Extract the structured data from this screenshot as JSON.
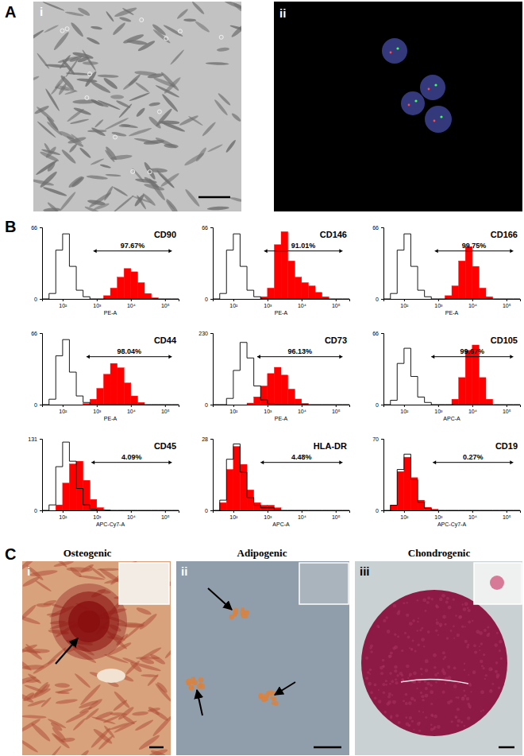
{
  "panel_labels": [
    "A",
    "B",
    "C"
  ],
  "panel_a": {
    "image_labels": [
      "i",
      "ii"
    ]
  },
  "panel_c": {
    "images": [
      {
        "title": "Osteogenic",
        "label": "i"
      },
      {
        "title": "Adipogenic",
        "label": "ii"
      },
      {
        "title": "Chondrogenic",
        "label": "iii"
      }
    ]
  },
  "chart_data": [
    {
      "type": "histogram",
      "title": "CD90",
      "x_label": "PE-A",
      "log": "x",
      "bins": [
        25,
        40,
        63,
        100,
        158,
        251,
        398,
        631,
        1000,
        1585,
        2512,
        3981,
        6310,
        10000,
        15849,
        25119,
        39811,
        63096,
        100000,
        158489,
        251189
      ],
      "xlim": [
        25,
        251189
      ],
      "ylim": [
        0,
        66
      ],
      "xticks": [
        {
          "value": 100,
          "label": "10²"
        },
        {
          "value": 1000,
          "label": "10³"
        },
        {
          "value": 10000,
          "label": "10⁴"
        },
        {
          "value": 100000,
          "label": "10⁵"
        }
      ],
      "yticks": [
        0,
        66
      ],
      "series": [
        {
          "type": "area",
          "color": "#ff0000",
          "values": [
            0,
            0,
            0,
            0,
            0,
            0,
            0,
            0,
            0,
            3,
            10,
            20,
            28,
            25,
            15,
            5,
            1,
            0,
            0,
            0
          ]
        },
        {
          "type": "line",
          "color": "#000000",
          "values": [
            0,
            5,
            45,
            60,
            30,
            8,
            2,
            0,
            0,
            0,
            0,
            0,
            0,
            0,
            0,
            0,
            0,
            0,
            0,
            0
          ]
        }
      ],
      "annotations": [
        {
          "text": "97.67%",
          "range": [
            800,
            158489
          ]
        }
      ]
    },
    {
      "type": "histogram",
      "title": "CD146",
      "x_label": "PE-A",
      "log": "x",
      "bins": [
        25,
        40,
        63,
        100,
        158,
        251,
        398,
        631,
        1000,
        1585,
        2512,
        3981,
        6310,
        10000,
        15849,
        25119,
        39811,
        63096,
        100000,
        158489,
        251189
      ],
      "xlim": [
        25,
        251189
      ],
      "ylim": [
        0,
        66
      ],
      "xticks": [
        {
          "value": 100,
          "label": "10²"
        },
        {
          "value": 1000,
          "label": "10³"
        },
        {
          "value": 10000,
          "label": "10⁴"
        },
        {
          "value": 100000,
          "label": "10⁵"
        }
      ],
      "yticks": [
        0,
        66
      ],
      "series": [
        {
          "type": "area",
          "color": "#ff0000",
          "values": [
            0,
            0,
            0,
            0,
            0,
            0,
            0,
            2,
            10,
            50,
            62,
            35,
            20,
            15,
            12,
            6,
            2,
            0,
            0,
            0
          ]
        },
        {
          "type": "line",
          "color": "#000000",
          "values": [
            0,
            5,
            45,
            60,
            30,
            8,
            2,
            0,
            0,
            0,
            0,
            0,
            0,
            0,
            0,
            0,
            0,
            0,
            0,
            0
          ]
        }
      ],
      "annotations": [
        {
          "text": "91.01%",
          "range": [
            800,
            158489
          ]
        }
      ]
    },
    {
      "type": "histogram",
      "title": "CD166",
      "x_label": "PE-A",
      "log": "x",
      "bins": [
        25,
        40,
        63,
        100,
        158,
        251,
        398,
        631,
        1000,
        1585,
        2512,
        3981,
        6310,
        10000,
        15849,
        25119,
        39811,
        63096,
        100000,
        158489,
        251189
      ],
      "xlim": [
        25,
        251189
      ],
      "ylim": [
        0,
        66
      ],
      "xticks": [
        {
          "value": 100,
          "label": "10²"
        },
        {
          "value": 1000,
          "label": "10³"
        },
        {
          "value": 10000,
          "label": "10⁴"
        },
        {
          "value": 100000,
          "label": "10⁵"
        }
      ],
      "yticks": [
        0,
        66
      ],
      "series": [
        {
          "type": "area",
          "color": "#ff0000",
          "values": [
            0,
            0,
            0,
            0,
            0,
            0,
            0,
            0,
            0,
            3,
            12,
            35,
            48,
            30,
            10,
            2,
            0,
            0,
            0,
            0
          ]
        },
        {
          "type": "line",
          "color": "#000000",
          "values": [
            0,
            5,
            45,
            60,
            30,
            8,
            2,
            0,
            0,
            0,
            0,
            0,
            0,
            0,
            0,
            0,
            0,
            0,
            0,
            0
          ]
        }
      ],
      "annotations": [
        {
          "text": "99.75%",
          "range": [
            800,
            158489
          ]
        }
      ]
    },
    {
      "type": "histogram",
      "title": "CD44",
      "x_label": "PE-A",
      "log": "x",
      "bins": [
        25,
        40,
        63,
        100,
        158,
        251,
        398,
        631,
        1000,
        1585,
        2512,
        3981,
        6310,
        10000,
        15849,
        25119,
        39811,
        63096,
        100000,
        158489,
        251189
      ],
      "xlim": [
        25,
        251189
      ],
      "ylim": [
        0,
        66
      ],
      "xticks": [
        {
          "value": 100,
          "label": "10²"
        },
        {
          "value": 1000,
          "label": "10³"
        },
        {
          "value": 10000,
          "label": "10⁴"
        },
        {
          "value": 100000,
          "label": "10⁵"
        }
      ],
      "yticks": [
        0,
        66
      ],
      "series": [
        {
          "type": "area",
          "color": "#ff0000",
          "values": [
            0,
            0,
            0,
            0,
            0,
            0,
            1,
            5,
            15,
            28,
            38,
            34,
            20,
            8,
            2,
            0,
            0,
            0,
            0,
            0
          ]
        },
        {
          "type": "line",
          "color": "#000000",
          "values": [
            0,
            5,
            45,
            60,
            30,
            8,
            2,
            0,
            0,
            0,
            0,
            0,
            0,
            0,
            0,
            0,
            0,
            0,
            0,
            0
          ]
        }
      ],
      "annotations": [
        {
          "text": "98.04%",
          "range": [
            500,
            158489
          ]
        }
      ]
    },
    {
      "type": "histogram",
      "title": "CD73",
      "x_label": "PE-A",
      "log": "x",
      "bins": [
        25,
        40,
        63,
        100,
        158,
        251,
        398,
        631,
        1000,
        1585,
        2512,
        3981,
        6310,
        10000,
        15849,
        25119,
        39811,
        63096,
        100000,
        158489,
        251189
      ],
      "xlim": [
        25,
        251189
      ],
      "ylim": [
        0,
        230
      ],
      "xticks": [
        {
          "value": 100,
          "label": "10²"
        },
        {
          "value": 1000,
          "label": "10³"
        },
        {
          "value": 10000,
          "label": "10⁴"
        },
        {
          "value": 100000,
          "label": "10⁵"
        }
      ],
      "yticks": [
        0,
        230
      ],
      "series": [
        {
          "type": "area",
          "color": "#ff0000",
          "values": [
            0,
            0,
            0,
            0,
            0,
            5,
            25,
            60,
            100,
            120,
            95,
            50,
            18,
            4,
            0,
            0,
            0,
            0,
            0,
            0
          ]
        },
        {
          "type": "line",
          "color": "#000000",
          "values": [
            0,
            0,
            20,
            110,
            200,
            150,
            60,
            15,
            3,
            0,
            0,
            0,
            0,
            0,
            0,
            0,
            0,
            0,
            0,
            0
          ]
        }
      ],
      "annotations": [
        {
          "text": "96.13%",
          "range": [
            500,
            158489
          ]
        }
      ]
    },
    {
      "type": "histogram",
      "title": "CD105",
      "x_label": "APC-A",
      "log": "x",
      "bins": [
        25,
        40,
        63,
        100,
        158,
        251,
        398,
        631,
        1000,
        1585,
        2512,
        3981,
        6310,
        10000,
        15849,
        25119,
        39811,
        63096,
        100000,
        158489,
        251189
      ],
      "xlim": [
        25,
        251189
      ],
      "ylim": [
        0,
        66
      ],
      "xticks": [
        {
          "value": 100,
          "label": "10²"
        },
        {
          "value": 1000,
          "label": "10³"
        },
        {
          "value": 10000,
          "label": "10⁴"
        },
        {
          "value": 100000,
          "label": "10⁵"
        }
      ],
      "yticks": [
        0,
        66
      ],
      "series": [
        {
          "type": "area",
          "color": "#ff0000",
          "values": [
            0,
            0,
            0,
            0,
            0,
            0,
            0,
            0,
            0,
            0,
            5,
            25,
            50,
            55,
            25,
            5,
            0,
            0,
            0,
            0
          ]
        },
        {
          "type": "line",
          "color": "#000000",
          "values": [
            0,
            4,
            38,
            52,
            26,
            7,
            2,
            0,
            0,
            0,
            0,
            0,
            0,
            0,
            0,
            0,
            0,
            0,
            0,
            0
          ]
        }
      ],
      "annotations": [
        {
          "text": "99.67%",
          "range": [
            631,
            158489
          ]
        }
      ]
    },
    {
      "type": "histogram",
      "title": "CD45",
      "x_label": "APC-Cy7-A",
      "log": "x",
      "bins": [
        25,
        40,
        63,
        100,
        158,
        251,
        398,
        631,
        1000,
        1585,
        2512,
        3981,
        6310,
        10000,
        15849,
        25119,
        39811,
        63096,
        100000,
        158489,
        251189
      ],
      "xlim": [
        25,
        251189
      ],
      "ylim": [
        0,
        131
      ],
      "xticks": [
        {
          "value": 100,
          "label": "10²"
        },
        {
          "value": 1000,
          "label": "10³"
        },
        {
          "value": 10000,
          "label": "10⁴"
        },
        {
          "value": 100000,
          "label": "10⁵"
        }
      ],
      "yticks": [
        0,
        131
      ],
      "series": [
        {
          "type": "area",
          "color": "#ff0000",
          "values": [
            0,
            0,
            10,
            50,
            85,
            90,
            55,
            20,
            5,
            1,
            0,
            0,
            0,
            0,
            0,
            0,
            0,
            0,
            0,
            0
          ]
        },
        {
          "type": "line",
          "color": "#000000",
          "values": [
            0,
            10,
            80,
            125,
            90,
            40,
            10,
            2,
            0,
            0,
            0,
            0,
            0,
            0,
            0,
            0,
            0,
            0,
            0,
            0
          ]
        }
      ],
      "annotations": [
        {
          "text": "4.09%",
          "range": [
            700,
            158489
          ]
        }
      ]
    },
    {
      "type": "histogram",
      "title": "HLA-DR",
      "x_label": "APC-A",
      "log": "x",
      "bins": [
        25,
        40,
        63,
        100,
        158,
        251,
        398,
        631,
        1000,
        1585,
        2512,
        3981,
        6310,
        10000,
        15849,
        25119,
        39811,
        63096,
        100000,
        158489,
        251189
      ],
      "xlim": [
        25,
        251189
      ],
      "ylim": [
        0,
        28
      ],
      "xticks": [
        {
          "value": 100,
          "label": "10²"
        },
        {
          "value": 1000,
          "label": "10³"
        },
        {
          "value": 10000,
          "label": "10⁴"
        },
        {
          "value": 100000,
          "label": "10⁵"
        }
      ],
      "yticks": [
        0,
        28
      ],
      "series": [
        {
          "type": "area",
          "color": "#ff0000",
          "values": [
            0,
            3,
            16,
            25,
            18,
            8,
            3,
            2,
            2,
            1,
            0,
            0,
            0,
            0,
            0,
            0,
            0,
            0,
            0,
            0
          ]
        },
        {
          "type": "line",
          "color": "#000000",
          "values": [
            0,
            4,
            20,
            26,
            15,
            5,
            2,
            1,
            1,
            0,
            0,
            0,
            0,
            0,
            0,
            0,
            0,
            0,
            0,
            0
          ]
        }
      ],
      "annotations": [
        {
          "text": "4.48%",
          "range": [
            631,
            158489
          ]
        }
      ]
    },
    {
      "type": "histogram",
      "title": "CD19",
      "x_label": "APC-Cy7-A",
      "log": "x",
      "bins": [
        25,
        40,
        63,
        100,
        158,
        251,
        398,
        631,
        1000,
        1585,
        2512,
        3981,
        6310,
        10000,
        15849,
        25119,
        39811,
        63096,
        100000,
        158489,
        251189
      ],
      "xlim": [
        25,
        251189
      ],
      "ylim": [
        0,
        70
      ],
      "xticks": [
        {
          "value": 100,
          "label": "10²"
        },
        {
          "value": 1000,
          "label": "10³"
        },
        {
          "value": 10000,
          "label": "10⁴"
        },
        {
          "value": 100000,
          "label": "10⁵"
        }
      ],
      "yticks": [
        0,
        70
      ],
      "series": [
        {
          "type": "area",
          "color": "#ff0000",
          "values": [
            0,
            5,
            38,
            52,
            32,
            10,
            3,
            1,
            0,
            0,
            0,
            0,
            0,
            0,
            0,
            0,
            0,
            0,
            0,
            0
          ]
        },
        {
          "type": "line",
          "color": "#000000",
          "values": [
            0,
            5,
            40,
            55,
            30,
            8,
            2,
            0,
            0,
            0,
            0,
            0,
            0,
            0,
            0,
            0,
            0,
            0,
            0,
            0
          ]
        }
      ],
      "annotations": [
        {
          "text": "0.27%",
          "range": [
            700,
            158489
          ]
        }
      ]
    }
  ]
}
